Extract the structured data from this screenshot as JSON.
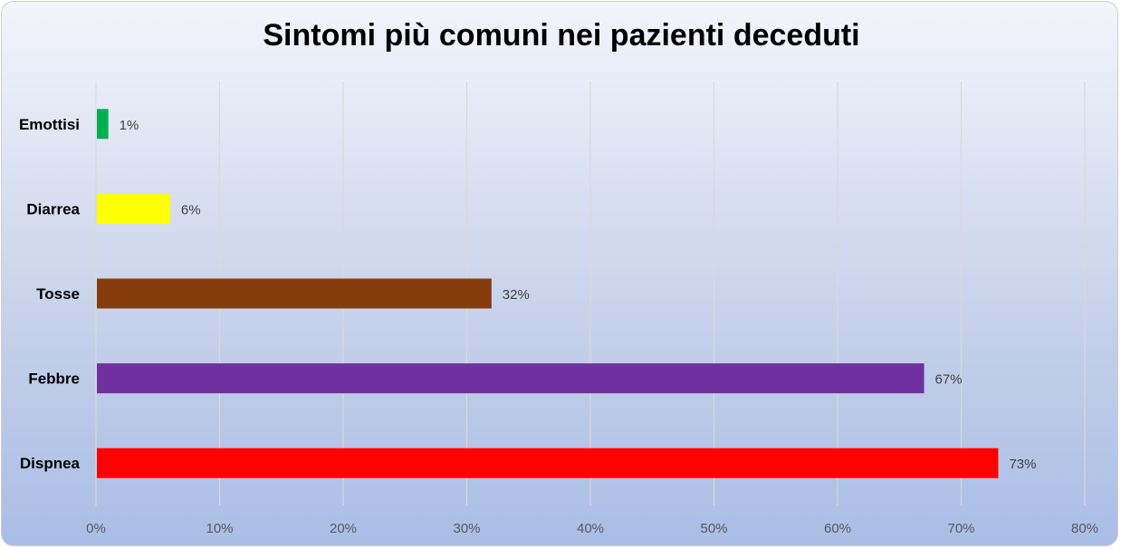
{
  "chart_data": {
    "type": "bar",
    "orientation": "horizontal",
    "title": "Sintomi più comuni nei pazienti deceduti",
    "xlabel": "",
    "ylabel": "",
    "categories": [
      "Emottisi",
      "Diarrea",
      "Tosse",
      "Febbre",
      "Dispnea"
    ],
    "values": [
      1,
      6,
      32,
      67,
      73
    ],
    "data_labels": [
      "1%",
      "6%",
      "32%",
      "67%",
      "73%"
    ],
    "colors": [
      "#00b050",
      "#ffff00",
      "#843c0c",
      "#7030a0",
      "#ff0000"
    ],
    "xlim": [
      0,
      80
    ],
    "ticks": [
      0,
      10,
      20,
      30,
      40,
      50,
      60,
      70,
      80
    ],
    "tick_labels": [
      "0%",
      "10%",
      "20%",
      "30%",
      "40%",
      "50%",
      "60%",
      "70%",
      "80%"
    ],
    "grid": "vertical",
    "legend": "none"
  }
}
